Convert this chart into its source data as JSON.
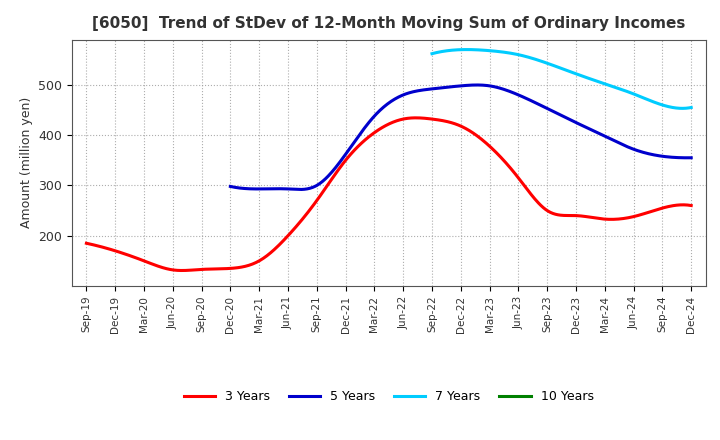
{
  "title": "[6050]  Trend of StDev of 12-Month Moving Sum of Ordinary Incomes",
  "ylabel": "Amount (million yen)",
  "xlabels": [
    "Sep-19",
    "Dec-19",
    "Mar-20",
    "Jun-20",
    "Sep-20",
    "Dec-20",
    "Mar-21",
    "Jun-21",
    "Sep-21",
    "Dec-21",
    "Mar-22",
    "Jun-22",
    "Sep-22",
    "Dec-22",
    "Mar-23",
    "Jun-23",
    "Sep-23",
    "Dec-23",
    "Mar-24",
    "Jun-24",
    "Sep-24",
    "Dec-24"
  ],
  "series": {
    "3 Years": {
      "color": "#ff0000",
      "values": [
        185,
        170,
        150,
        132,
        133,
        135,
        150,
        200,
        270,
        350,
        405,
        432,
        432,
        418,
        378,
        315,
        250,
        240,
        233,
        238,
        255,
        260
      ]
    },
    "5 Years": {
      "color": "#0000cc",
      "values": [
        null,
        null,
        null,
        null,
        null,
        298,
        293,
        293,
        300,
        362,
        438,
        480,
        492,
        498,
        498,
        480,
        453,
        425,
        398,
        372,
        358,
        355
      ]
    },
    "7 Years": {
      "color": "#00ccff",
      "values": [
        null,
        null,
        null,
        null,
        null,
        null,
        null,
        null,
        null,
        null,
        null,
        null,
        562,
        570,
        568,
        560,
        543,
        522,
        502,
        482,
        460,
        455
      ]
    },
    "10 Years": {
      "color": "#008000",
      "values": [
        null,
        null,
        null,
        null,
        null,
        null,
        null,
        null,
        null,
        null,
        null,
        null,
        null,
        null,
        null,
        null,
        null,
        null,
        null,
        null,
        null,
        null
      ]
    }
  },
  "ylim": [
    100,
    590
  ],
  "yticks": [
    200,
    300,
    400,
    500
  ],
  "grid_color": "#999999",
  "background_color": "#ffffff",
  "plot_bg_color": "#ffffff",
  "title_fontsize": 11,
  "title_color": "#333333",
  "legend_colors": [
    "#ff0000",
    "#0000cc",
    "#00ccff",
    "#008000"
  ],
  "legend_labels": [
    "3 Years",
    "5 Years",
    "7 Years",
    "10 Years"
  ]
}
